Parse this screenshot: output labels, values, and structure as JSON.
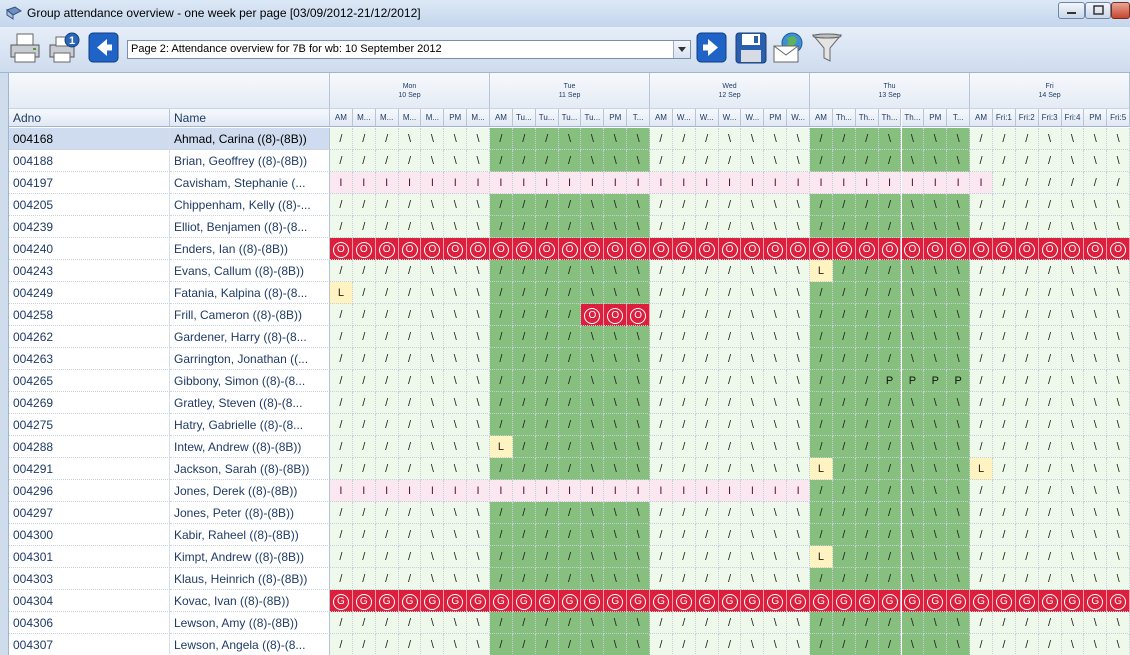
{
  "window": {
    "title": "Group attendance overview - one week per page [03/09/2012-21/12/2012]"
  },
  "toolbar": {
    "page_selector": "Page 2: Attendance overview  for 7B for wb: 10 September 2012",
    "buttons": [
      "print-icon",
      "print-preview-icon",
      "back-arrow-icon",
      "forward-arrow-icon",
      "save-icon",
      "email-icon",
      "filter-icon"
    ]
  },
  "columns": {
    "adno": "Adno",
    "name": "Name"
  },
  "days": [
    {
      "day": "Mon",
      "date": "10 Sep",
      "sessions": [
        "AM",
        "M...",
        "M...",
        "M...",
        "M...",
        "PM",
        "M..."
      ]
    },
    {
      "day": "Tue",
      "date": "11 Sep",
      "sessions": [
        "AM",
        "Tu...",
        "Tu...",
        "Tu...",
        "Tu...",
        "PM",
        "T..."
      ]
    },
    {
      "day": "Wed",
      "date": "12 Sep",
      "sessions": [
        "AM",
        "W...",
        "W...",
        "W...",
        "W...",
        "PM",
        "W..."
      ]
    },
    {
      "day": "Thu",
      "date": "13 Sep",
      "sessions": [
        "AM",
        "Th...",
        "Th...",
        "Th...",
        "Th...",
        "PM",
        "T..."
      ]
    },
    {
      "day": "Fri",
      "date": "14 Sep",
      "sessions": [
        "AM",
        "Fri:1",
        "Fri:2",
        "Fri:3",
        "Fri:4",
        "PM",
        "Fri:5"
      ]
    }
  ],
  "colors": {
    "light": "#eef9ec",
    "dark": "#86bf7e",
    "absent_red": "#dc1f3c",
    "illness_pink": "#fbe7ef",
    "late_yellow": "#fff3c2"
  },
  "rows": [
    {
      "adno": "004168",
      "name": "Ahmad, Carina ((8)-(8B))",
      "selected": true,
      "marks": "///\\\\\\\\///\\\\\\\\///\\\\\\\\///\\\\\\\\///\\\\\\\\"
    },
    {
      "adno": "004188",
      "name": "Brian, Geoffrey ((8)-(8B))",
      "marks": "////\\\\\\////\\\\\\////\\\\\\////\\\\\\////\\\\\\"
    },
    {
      "adno": "004197",
      "name": "Cavisham, Stephanie (...",
      "marks": "IIIIIIIIIIIIIIIIIIIIIIIIIIIII//////"
    },
    {
      "adno": "004205",
      "name": "Chippenham, Kelly ((8)-...",
      "marks": "////\\\\\\////\\\\\\////\\\\\\////\\\\\\////\\\\\\"
    },
    {
      "adno": "004239",
      "name": "Elliot, Benjamen ((8)-(8...",
      "marks": "////\\\\\\////\\\\\\////\\\\\\////\\\\\\////\\\\\\"
    },
    {
      "adno": "004240",
      "name": "Enders, Ian ((8)-(8B))",
      "marks": "OOOOOOOOOOOOOOOOOOOOOOOOOOOOOOOOOOO"
    },
    {
      "adno": "004243",
      "name": "Evans, Callum ((8)-(8B))",
      "marks": "////\\\\\\////\\\\\\////\\\\\\L///\\\\\\////\\\\\\"
    },
    {
      "adno": "004249",
      "name": "Fatania, Kalpina ((8)-(8...",
      "marks": "L///\\\\\\////\\\\\\////\\\\\\////\\\\\\////\\\\\\"
    },
    {
      "adno": "004258",
      "name": "Frill, Cameron ((8)-(8B))",
      "marks": "////\\\\\\////OOO////\\\\\\////\\\\\\////\\\\\\"
    },
    {
      "adno": "004262",
      "name": "Gardener, Harry ((8)-(8...",
      "marks": "////\\\\\\////\\\\\\////\\\\\\////\\\\\\////\\\\\\"
    },
    {
      "adno": "004263",
      "name": "Garrington, Jonathan ((...",
      "marks": "////\\\\\\////\\\\\\////\\\\\\////\\\\\\////\\\\\\"
    },
    {
      "adno": "004265",
      "name": "Gibbony, Simon ((8)-(8...",
      "marks": "////\\\\\\////\\\\\\////\\\\\\///PPPP////\\\\\\"
    },
    {
      "adno": "004269",
      "name": "Gratley, Steven ((8)-(8...",
      "marks": "////\\\\\\////\\\\\\////\\\\\\////\\\\\\////\\\\\\"
    },
    {
      "adno": "004275",
      "name": "Hatry, Gabrielle ((8)-(8...",
      "marks": "////\\\\\\////\\\\\\////\\\\\\////\\\\\\////\\\\\\"
    },
    {
      "adno": "004288",
      "name": "Intew, Andrew ((8)-(8B))",
      "marks": "////\\\\\\L///\\\\\\////\\\\\\////\\\\\\////\\\\\\"
    },
    {
      "adno": "004291",
      "name": "Jackson, Sarah ((8)-(8B))",
      "marks": "////\\\\\\////\\\\\\////\\\\\\L///\\\\\\L///\\\\\\"
    },
    {
      "adno": "004296",
      "name": "Jones, Derek ((8)-(8B))",
      "marks": "IIIIIIIIIIIIIIIIIIIII////\\\\\\////\\\\\\"
    },
    {
      "adno": "004297",
      "name": "Jones, Peter ((8)-(8B))",
      "marks": "////\\\\\\////\\\\\\////\\\\\\////\\\\\\////\\\\\\"
    },
    {
      "adno": "004300",
      "name": "Kabir, Raheel ((8)-(8B))",
      "marks": "////\\\\\\////\\\\\\////\\\\\\////\\\\\\////\\\\\\"
    },
    {
      "adno": "004301",
      "name": "Kimpt, Andrew ((8)-(8B))",
      "marks": "////\\\\\\////\\\\\\////\\\\\\L///\\\\\\////\\\\\\"
    },
    {
      "adno": "004303",
      "name": "Klaus, Heinrich ((8)-(8B))",
      "marks": "////\\\\\\////\\\\\\////\\\\\\////\\\\\\////\\\\\\"
    },
    {
      "adno": "004304",
      "name": "Kovac, Ivan ((8)-(8B))",
      "marks": "GGGGGGGGGGGGGGGGGGGGGGGGGGGGGGGGGGG"
    },
    {
      "adno": "004306",
      "name": "Lewson, Amy ((8)-(8B))",
      "marks": "////\\\\\\////\\\\\\////\\\\\\////\\\\\\////\\\\\\"
    },
    {
      "adno": "004307",
      "name": "Lewson, Angela ((8)-(8...",
      "marks": "////\\\\\\////\\\\\\////\\\\\\////\\\\\\////\\\\\\"
    }
  ]
}
